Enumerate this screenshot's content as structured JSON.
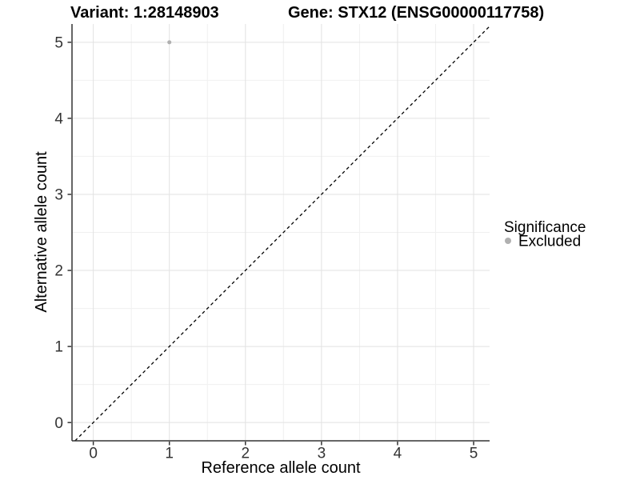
{
  "figure": {
    "titles": {
      "variant": "Variant: 1:28148903",
      "gene": "Gene: STX12 (ENSG00000117758)"
    },
    "x_axis": {
      "title": "Reference allele count"
    },
    "y_axis": {
      "title": "Alternative allele count"
    },
    "legend": {
      "title": "Significance",
      "items": [
        {
          "label": "Excluded",
          "color": "#b0b0b0"
        }
      ]
    }
  },
  "chart_data": {
    "type": "scatter",
    "title": "Variant: 1:28148903   Gene: STX12 (ENSG00000117758)",
    "xlabel": "Reference allele count",
    "ylabel": "Alternative allele count",
    "xlim": [
      -0.28,
      5.21
    ],
    "ylim": [
      -0.24,
      5.24
    ],
    "x_ticks": [
      0,
      1,
      2,
      3,
      4,
      5
    ],
    "y_ticks": [
      0,
      1,
      2,
      3,
      4,
      5
    ],
    "minor_ticks": [
      0.5,
      1.5,
      2.5,
      3.5,
      4.5
    ],
    "grid": "major-and-minor",
    "legend_position": "right",
    "series": [
      {
        "name": "Excluded",
        "color": "#b0b0b0",
        "marker_radius": 2.5,
        "points": [
          [
            1,
            5
          ]
        ]
      }
    ],
    "reference_line": {
      "kind": "identity",
      "style": "dashed",
      "color": "#000000"
    }
  },
  "colors": {
    "background": "#ffffff",
    "axis_line": "#333333",
    "tick_mark": "#333333",
    "tick_label": "#333333",
    "grid_major": "#e2e2e2",
    "grid_minor": "#f0f0f0",
    "title": "#000000"
  }
}
